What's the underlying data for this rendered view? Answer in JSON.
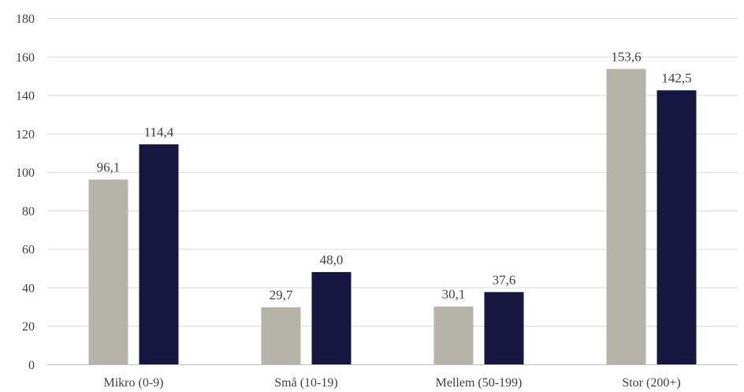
{
  "chart_data": {
    "type": "bar",
    "categories": [
      "Mikro (0-9)",
      "Små (10-19)",
      "Mellem (50-199)",
      "Stor (200+)"
    ],
    "series": [
      {
        "values": [
          96.1,
          29.7,
          30.1,
          153.6
        ],
        "labels": [
          "96,1",
          "29,7",
          "30,1",
          "153,6"
        ],
        "color": "#b6b4a8"
      },
      {
        "values": [
          114.4,
          48.0,
          37.6,
          142.5
        ],
        "labels": [
          "114,4",
          "48,0",
          "37,6",
          "142,5"
        ],
        "color": "#161640"
      }
    ],
    "title": "",
    "xlabel": "",
    "ylabel": "",
    "ylim": [
      0,
      180
    ],
    "yticks": [
      0,
      20,
      40,
      60,
      80,
      100,
      120,
      140,
      160,
      180
    ],
    "grid": true,
    "legend": "none"
  }
}
